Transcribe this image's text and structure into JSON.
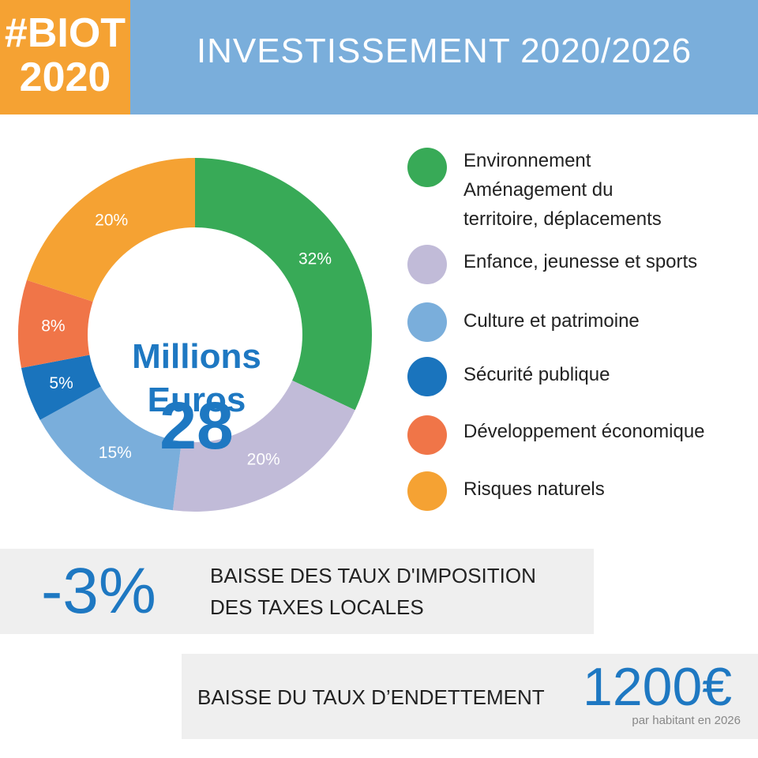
{
  "logo": {
    "line1": "#BIOT",
    "line2": "2020"
  },
  "header": {
    "title": "INVESTISSEMENT 2020/2026"
  },
  "chart_data": {
    "type": "pie",
    "center_value": "28",
    "center_line1": "Millions",
    "center_line2": "Euros",
    "slices": [
      {
        "label": "Environnement\nAménagement du\nterritoire, déplacements",
        "value": 32,
        "display": "32%",
        "color": "#38aa57"
      },
      {
        "label": "Enfance, jeunesse et sports",
        "value": 20,
        "display": "20%",
        "color": "#c1bbd8"
      },
      {
        "label": "Culture et patrimoine",
        "value": 15,
        "display": "15%",
        "color": "#7aaedb"
      },
      {
        "label": "Sécurité publique",
        "value": 5,
        "display": "5%",
        "color": "#1a74bd"
      },
      {
        "label": "Développement économique",
        "value": 8,
        "display": "8%",
        "color": "#f07548"
      },
      {
        "label": "Risques naturels",
        "value": 20,
        "display": "20%",
        "color": "#f5a233"
      }
    ],
    "legend_position": "right"
  },
  "legend": [
    {
      "line1": "Environnement",
      "line2": "Aménagement du",
      "line3": "territoire, déplacements"
    },
    {
      "line1": "Enfance, jeunesse et sports"
    },
    {
      "line1": "Culture et patrimoine"
    },
    {
      "line1": "Sécurité publique"
    },
    {
      "line1": "Développement économique"
    },
    {
      "line1": "Risques naturels"
    }
  ],
  "tax": {
    "value": "-3%",
    "line1": "BAISSE DES TAUX D'IMPOSITION",
    "line2": "DES TAXES LOCALES"
  },
  "debt": {
    "label": "BAISSE DU TAUX D’ENDETTEMENT",
    "value": "1200€",
    "sub": "par habitant en 2026"
  }
}
